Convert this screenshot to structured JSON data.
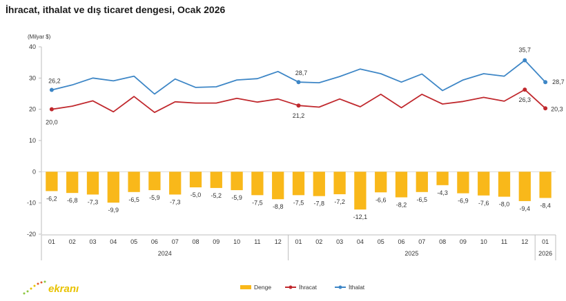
{
  "chart_data": {
    "type": "bar+line",
    "title": "İhracat, ithalat ve dış ticaret dengesi, Ocak 2026",
    "ylabel": "(Milyar $)",
    "ylim": [
      -20,
      40
    ],
    "yticks": [
      "40",
      "30",
      "20",
      "10",
      "0",
      "-10",
      "-20"
    ],
    "categories": [
      "01",
      "02",
      "03",
      "04",
      "05",
      "06",
      "07",
      "08",
      "09",
      "10",
      "11",
      "12",
      "01",
      "02",
      "03",
      "04",
      "05",
      "06",
      "07",
      "08",
      "09",
      "10",
      "11",
      "12",
      "01"
    ],
    "years": [
      {
        "label": "2024",
        "start": 0,
        "end": 11
      },
      {
        "label": "2025",
        "start": 12,
        "end": 23
      },
      {
        "label": "2026",
        "start": 24,
        "end": 24
      }
    ],
    "series": [
      {
        "name": "Denge",
        "type": "bar",
        "color": "#f9b81a",
        "values": [
          -6.2,
          -6.8,
          -7.3,
          -9.9,
          -6.5,
          -5.9,
          -7.3,
          -5.0,
          -5.2,
          -5.9,
          -7.5,
          -8.8,
          -7.5,
          -7.8,
          -7.2,
          -12.1,
          -6.6,
          -8.2,
          -6.5,
          -4.3,
          -6.9,
          -7.6,
          -8.0,
          -9.4,
          -8.4
        ],
        "labels": [
          "-6,2",
          "-6,8",
          "-7,3",
          "-9,9",
          "-6,5",
          "-5,9",
          "-7,3",
          "-5,0",
          "-5,2",
          "-5,9",
          "-7,5",
          "-8,8",
          "-7,5",
          "-7,8",
          "-7,2",
          "-12,1",
          "-6,6",
          "-8,2",
          "-6,5",
          "-4,3",
          "-6,9",
          "-7,6",
          "-8,0",
          "-9,4",
          "-8,4"
        ]
      },
      {
        "name": "İhracat",
        "type": "line",
        "color": "#c0282d",
        "values": [
          20.0,
          21.0,
          22.7,
          19.2,
          24.1,
          19.0,
          22.4,
          22.0,
          22.0,
          23.5,
          22.3,
          23.3,
          21.2,
          20.7,
          23.3,
          20.8,
          24.8,
          20.5,
          24.8,
          21.7,
          22.5,
          23.8,
          22.6,
          26.3,
          20.3
        ],
        "labels": [
          {
            "index": 0,
            "text": "20,0"
          },
          {
            "index": 12,
            "text": "21,2"
          },
          {
            "index": 23,
            "text": "26,3"
          },
          {
            "index": 24,
            "text": "20,3"
          }
        ]
      },
      {
        "name": "İthalat",
        "type": "line",
        "color": "#3d86c6",
        "values": [
          26.2,
          27.8,
          30.0,
          29.1,
          30.6,
          24.9,
          29.7,
          27.0,
          27.2,
          29.4,
          29.8,
          32.1,
          28.7,
          28.5,
          30.5,
          32.9,
          31.4,
          28.7,
          31.3,
          26.0,
          29.4,
          31.4,
          30.6,
          35.7,
          28.7
        ],
        "labels": [
          {
            "index": 0,
            "text": "26,2"
          },
          {
            "index": 12,
            "text": "28,7"
          },
          {
            "index": 23,
            "text": "35,7"
          },
          {
            "index": 24,
            "text": "28,7"
          }
        ]
      }
    ],
    "grid": false,
    "legend": "bottom-center"
  },
  "logo": {
    "text": "ekranı"
  }
}
